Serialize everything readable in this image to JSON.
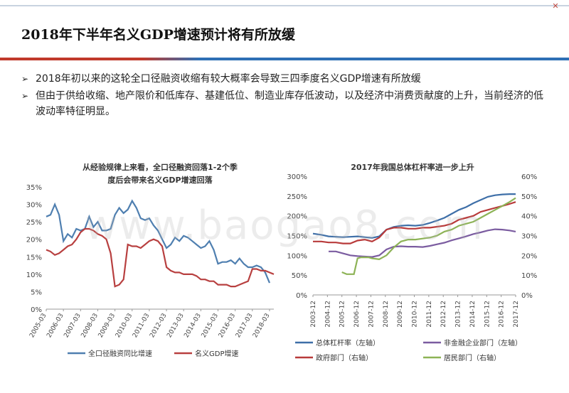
{
  "slide": {
    "title": "2018年下半年名义GDP增速预计将有所放缓",
    "close_symbol": "✕",
    "bullets": [
      "2018年初以来的这轮全口径融资收缩有较大概率会导致三四季度名义GDP增速有所放缓",
      "但由于供给收缩、地产限价和低库存、基建低位、制造业库存低波动，以及经济中消费贡献度的上升，当前经济的低波动率特征明显。"
    ],
    "watermark": "www.baogao8.com",
    "colors": {
      "accent_red": "#c0392b",
      "accent_blue": "#2e6fb5"
    }
  },
  "chart_data": [
    {
      "type": "line",
      "title": "从经验规律上来看，全口径融资回落1-2个季度后会带来名义GDP增速回落",
      "title_lines": [
        "从经验规律上来看，全口径融资回落1-2个季",
        "度后会带来名义GDP增速回落"
      ],
      "ylim": [
        0,
        35
      ],
      "yticks": [
        "0%",
        "5%",
        "10%",
        "15%",
        "20%",
        "25%",
        "30%",
        "35%"
      ],
      "xticks": [
        "2005-03",
        "2006-03",
        "2007-03",
        "2008-03",
        "2009-03",
        "2010-03",
        "2011-03",
        "2012-03",
        "2013-03",
        "2014-03",
        "2015-03",
        "2016-03",
        "2017-03",
        "2018-03"
      ],
      "x_start": 2005.0,
      "x_end": 2018.25,
      "series": [
        {
          "name": "全口径融资同比增速",
          "color": "#4f7fb0",
          "x": [
            2005.0,
            2005.25,
            2005.5,
            2005.75,
            2006.0,
            2006.25,
            2006.5,
            2006.75,
            2007.0,
            2007.25,
            2007.5,
            2007.75,
            2008.0,
            2008.25,
            2008.5,
            2008.75,
            2009.0,
            2009.25,
            2009.5,
            2009.75,
            2010.0,
            2010.25,
            2010.5,
            2010.75,
            2011.0,
            2011.25,
            2011.5,
            2011.75,
            2012.0,
            2012.25,
            2012.5,
            2012.75,
            2013.0,
            2013.25,
            2013.5,
            2013.75,
            2014.0,
            2014.25,
            2014.5,
            2014.75,
            2015.0,
            2015.25,
            2015.5,
            2015.75,
            2016.0,
            2016.25,
            2016.5,
            2016.75,
            2017.0,
            2017.25,
            2017.5,
            2017.75,
            2018.0
          ],
          "values": [
            26.5,
            27,
            30,
            27,
            19.5,
            21.5,
            20.5,
            23,
            22.5,
            23,
            26.5,
            23.5,
            25,
            22.5,
            22.5,
            23,
            27,
            29,
            27.5,
            28.5,
            31,
            29,
            26,
            25.5,
            26,
            24,
            22.5,
            20,
            17.5,
            18.5,
            20.5,
            19.5,
            21,
            20.5,
            19.5,
            18.5,
            17.5,
            18,
            19.5,
            17,
            13,
            13.5,
            13.5,
            14,
            13,
            14.5,
            13,
            12,
            12,
            12.5,
            12,
            10.5,
            7.5
          ]
        },
        {
          "name": "名义GDP增速",
          "color": "#b84040",
          "x": [
            2005.0,
            2005.25,
            2005.5,
            2005.75,
            2006.0,
            2006.25,
            2006.5,
            2006.75,
            2007.0,
            2007.25,
            2007.5,
            2007.75,
            2008.0,
            2008.25,
            2008.5,
            2008.75,
            2009.0,
            2009.25,
            2009.5,
            2009.75,
            2010.0,
            2010.25,
            2010.5,
            2010.75,
            2011.0,
            2011.25,
            2011.5,
            2011.75,
            2012.0,
            2012.25,
            2012.5,
            2012.75,
            2013.0,
            2013.25,
            2013.5,
            2013.75,
            2014.0,
            2014.25,
            2014.5,
            2014.75,
            2015.0,
            2015.25,
            2015.5,
            2015.75,
            2016.0,
            2016.25,
            2016.5,
            2016.75,
            2017.0,
            2017.25,
            2017.5,
            2017.75,
            2018.0,
            2018.25
          ],
          "values": [
            17,
            16.5,
            15.5,
            16,
            17,
            18,
            18.5,
            20,
            22,
            23,
            23,
            22.5,
            21.5,
            21,
            20,
            16,
            6.5,
            7,
            8.5,
            18.5,
            18,
            18,
            17.5,
            18.5,
            19.5,
            20,
            19.5,
            18,
            12,
            11,
            10.5,
            10.5,
            10,
            10,
            10,
            9.5,
            8.5,
            8.5,
            8,
            8,
            7,
            7,
            7,
            6.5,
            6.5,
            7,
            7.5,
            8,
            11.5,
            11.5,
            11,
            11,
            10.5,
            10
          ]
        }
      ]
    },
    {
      "type": "line",
      "title": "2017年我国总体杠杆率进一步上升",
      "ylim_left": [
        0,
        300
      ],
      "yticks_left": [
        "0%",
        "50%",
        "100%",
        "150%",
        "200%",
        "250%",
        "300%"
      ],
      "ylim_right": [
        0,
        60
      ],
      "yticks_right": [
        "0%",
        "10%",
        "20%",
        "30%",
        "40%",
        "50%",
        "60%"
      ],
      "xticks": [
        "2003-12",
        "2004-12",
        "2005-12",
        "2006-12",
        "2007-12",
        "2008-12",
        "2009-12",
        "2010-12",
        "2011-12",
        "2012-12",
        "2013-12",
        "2014-12",
        "2015-12",
        "2016-12",
        "2017-12"
      ],
      "x_start": 2003.92,
      "x_end": 2017.92,
      "series": [
        {
          "name": "总体杠杆率（左轴）",
          "axis": "left",
          "color": "#3e6fa8",
          "x": [
            2003.92,
            2004.5,
            2005.0,
            2005.5,
            2006.0,
            2006.5,
            2007.0,
            2007.5,
            2008.0,
            2008.5,
            2009.0,
            2009.5,
            2010.0,
            2010.5,
            2011.0,
            2011.5,
            2012.0,
            2012.5,
            2013.0,
            2013.5,
            2014.0,
            2014.5,
            2015.0,
            2015.5,
            2016.0,
            2016.5,
            2017.0,
            2017.5,
            2017.92
          ],
          "values": [
            155,
            152,
            148,
            147,
            146,
            147,
            148,
            146,
            144,
            148,
            165,
            172,
            175,
            176,
            175,
            177,
            182,
            188,
            195,
            205,
            215,
            222,
            232,
            240,
            248,
            252,
            254,
            255,
            255
          ]
        },
        {
          "name": "非金融企业部门（左轴）",
          "axis": "left",
          "color": "#7b5ca0",
          "x": [
            2005.0,
            2005.5,
            2006.0,
            2006.5,
            2007.0,
            2007.5,
            2008.0,
            2008.5,
            2009.0,
            2009.5,
            2010.0,
            2010.5,
            2011.0,
            2011.5,
            2012.0,
            2012.5,
            2013.0,
            2013.5,
            2014.0,
            2014.5,
            2015.0,
            2015.5,
            2016.0,
            2016.5,
            2017.0,
            2017.5,
            2017.92
          ],
          "values": [
            110,
            110,
            105,
            100,
            98,
            97,
            96,
            100,
            115,
            122,
            123,
            122,
            122,
            121,
            124,
            128,
            132,
            138,
            143,
            148,
            154,
            158,
            163,
            166,
            165,
            163,
            160
          ]
        },
        {
          "name": "政府部门（右轴）",
          "axis": "right",
          "color": "#b83a3a",
          "x": [
            2003.92,
            2004.5,
            2005.0,
            2005.5,
            2006.0,
            2006.5,
            2007.0,
            2007.5,
            2008.0,
            2008.5,
            2009.0,
            2009.5,
            2010.0,
            2010.5,
            2011.0,
            2011.5,
            2012.0,
            2012.5,
            2013.0,
            2013.5,
            2014.0,
            2014.5,
            2015.0,
            2015.5,
            2016.0,
            2016.5,
            2017.0,
            2017.5,
            2017.92
          ],
          "values": [
            27,
            27,
            26.5,
            26.5,
            26,
            26,
            27.5,
            28,
            27,
            29,
            33,
            34,
            34,
            33.5,
            33.5,
            34,
            34,
            34.5,
            35,
            36,
            38,
            39,
            40,
            42,
            43,
            44,
            45,
            46,
            47
          ]
        },
        {
          "name": "居民部门（右轴）",
          "axis": "right",
          "color": "#8db356",
          "x": [
            2005.92,
            2006.25,
            2006.75,
            2007.0,
            2007.25,
            2007.75,
            2008.0,
            2008.5,
            2009.0,
            2009.5,
            2010.0,
            2010.5,
            2011.0,
            2011.5,
            2012.0,
            2012.5,
            2013.0,
            2013.5,
            2014.0,
            2014.5,
            2015.0,
            2015.5,
            2016.0,
            2016.5,
            2017.0,
            2017.5,
            2017.92
          ],
          "values": [
            11.5,
            10.5,
            10.5,
            18.5,
            19,
            19,
            18.5,
            18,
            20,
            24,
            27,
            28,
            28,
            28.5,
            29,
            30,
            32,
            33,
            35,
            36,
            37,
            39,
            41,
            43,
            45,
            47,
            49
          ]
        }
      ]
    }
  ]
}
